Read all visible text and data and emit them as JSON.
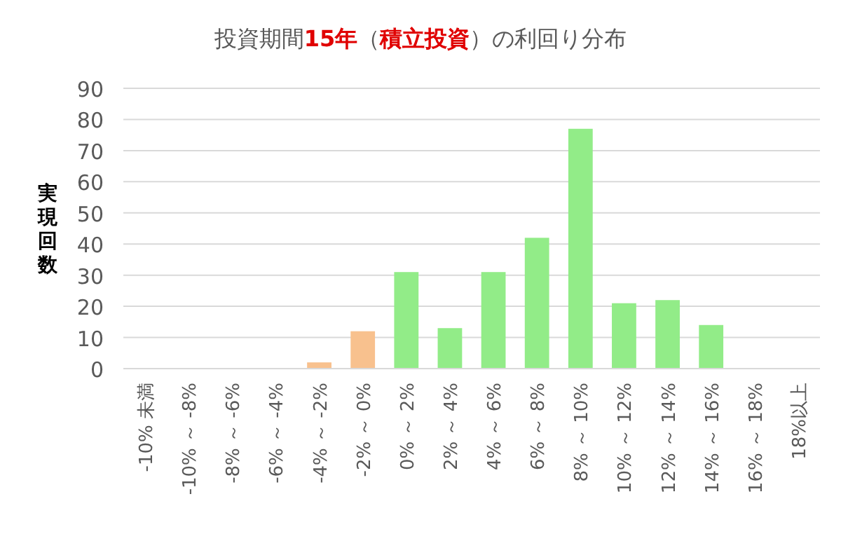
{
  "chart_data": {
    "type": "bar",
    "title": "投資期間**15年**（**積立投資**）の利回り分布",
    "ylabel": "実現回数",
    "categories": [
      "-10% 未満",
      "-10% ～ -8%",
      "-8% ～ -6%",
      "-6% ～ -4%",
      "-4% ～ -2%",
      "-2% ～ 0%",
      "0% ～ 2%",
      "2% ～ 4%",
      "4% ～ 6%",
      "6% ～ 8%",
      "8% ～ 10%",
      "10% ～ 12%",
      "12% ～ 14%",
      "14% ～ 16%",
      "16% ～ 18%",
      "18%以上"
    ],
    "values": [
      0,
      0,
      0,
      0,
      2,
      12,
      31,
      13,
      31,
      42,
      77,
      21,
      22,
      14,
      0,
      0
    ],
    "colors": [
      "#f8c18e",
      "#f8c18e",
      "#f8c18e",
      "#f8c18e",
      "#f8c18e",
      "#f8c18e",
      "#92ec88",
      "#92ec88",
      "#92ec88",
      "#92ec88",
      "#92ec88",
      "#92ec88",
      "#92ec88",
      "#92ec88",
      "#92ec88",
      "#92ec88"
    ],
    "ylim": [
      0,
      90
    ],
    "yticks": [
      0,
      10,
      20,
      30,
      40,
      50,
      60,
      70,
      80,
      90
    ],
    "grid": "y"
  }
}
